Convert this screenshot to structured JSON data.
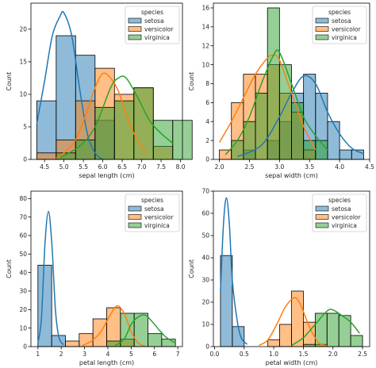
{
  "chart_data": [
    {
      "type": "histogram",
      "xlabel": "sepal length (cm)",
      "ylabel": "Count",
      "xlim": [
        4.15,
        8.05
      ],
      "ylim": [
        0,
        24
      ],
      "xticks": [
        4.5,
        5.0,
        5.5,
        6.0,
        6.5,
        7.0,
        7.5,
        8.0
      ],
      "xtick_labels": [
        "4.5",
        "5.0",
        "5.5",
        "6.0",
        "6.5",
        "7.0",
        "7.5",
        "8.0"
      ],
      "yticks": [
        0,
        5,
        10,
        15,
        20
      ],
      "yticks_labels": [
        "0",
        "5",
        "10",
        "15",
        "20"
      ],
      "legend": {
        "title": "species",
        "position": "top-right",
        "labels": [
          "setosa",
          "versicolor",
          "virginica"
        ]
      },
      "bins": [
        4.3,
        4.8,
        5.3,
        5.8,
        6.3,
        6.8,
        7.3,
        7.8,
        8.3
      ],
      "series": [
        {
          "name": "setosa",
          "color": "#1f77b4",
          "counts": [
            9,
            19,
            16,
            6,
            0,
            0,
            0,
            0
          ],
          "kde": [
            [
              4.3,
              5.5
            ],
            [
              4.5,
              12
            ],
            [
              4.7,
              19
            ],
            [
              4.9,
              22
            ],
            [
              5.0,
              22.5
            ],
            [
              5.2,
              19
            ],
            [
              5.4,
              11
            ],
            [
              5.6,
              4
            ],
            [
              5.8,
              1
            ],
            [
              6.0,
              0
            ]
          ]
        },
        {
          "name": "versicolor",
          "color": "#ff7f0e",
          "counts": [
            1,
            3,
            9,
            14,
            10,
            11,
            2,
            0
          ],
          "kde": [
            [
              4.8,
              0.2
            ],
            [
              5.0,
              1
            ],
            [
              5.3,
              3
            ],
            [
              5.6,
              7.5
            ],
            [
              5.8,
              11
            ],
            [
              6.0,
              13.2
            ],
            [
              6.2,
              12.5
            ],
            [
              6.4,
              10.5
            ],
            [
              6.6,
              7
            ],
            [
              6.8,
              4
            ],
            [
              7.1,
              1
            ]
          ]
        },
        {
          "name": "virginica",
          "color": "#2ca02c",
          "counts": [
            0,
            1,
            3,
            8,
            9,
            11,
            6,
            6
          ],
          "kde": [
            [
              4.9,
              0.3
            ],
            [
              5.4,
              2
            ],
            [
              5.8,
              5
            ],
            [
              6.2,
              11
            ],
            [
              6.4,
              12.5
            ],
            [
              6.6,
              12.5
            ],
            [
              6.9,
              9.5
            ],
            [
              7.2,
              6
            ],
            [
              7.5,
              4
            ],
            [
              7.8,
              2.5
            ]
          ]
        }
      ]
    },
    {
      "type": "histogram",
      "xlabel": "sepal width (cm)",
      "ylabel": "Count",
      "xlim": [
        1.9,
        4.5
      ],
      "ylim": [
        0,
        16.5
      ],
      "xticks": [
        2.0,
        2.5,
        3.0,
        3.5,
        4.0,
        4.5
      ],
      "xtick_labels": [
        "2.0",
        "2.5",
        "3.0",
        "3.5",
        "4.0",
        "4.5"
      ],
      "yticks": [
        0,
        2,
        4,
        6,
        8,
        10,
        12,
        14,
        16
      ],
      "yticks_labels": [
        "0",
        "2",
        "4",
        "6",
        "8",
        "10",
        "12",
        "14",
        "16"
      ],
      "legend": {
        "title": "species",
        "position": "top-right",
        "labels": [
          "setosa",
          "versicolor",
          "virginica"
        ]
      },
      "bins": [
        2.0,
        2.2,
        2.4,
        2.6,
        2.8,
        3.0,
        3.2,
        3.4,
        3.6,
        3.8,
        4.0,
        4.2,
        4.4
      ],
      "series": [
        {
          "name": "setosa",
          "color": "#1f77b4",
          "counts": [
            0,
            0,
            1,
            0,
            2,
            4,
            7,
            9,
            7,
            4,
            1,
            1
          ],
          "kde": [
            [
              2.3,
              0.3
            ],
            [
              2.7,
              1.5
            ],
            [
              3.0,
              4.5
            ],
            [
              3.2,
              7
            ],
            [
              3.4,
              8.8
            ],
            [
              3.6,
              8
            ],
            [
              3.8,
              5
            ],
            [
              4.0,
              2.7
            ],
            [
              4.2,
              1.2
            ],
            [
              4.4,
              0.6
            ]
          ]
        },
        {
          "name": "versicolor",
          "color": "#ff7f0e",
          "counts": [
            1,
            6,
            9,
            9,
            10,
            7,
            5,
            1,
            0,
            0,
            0,
            0
          ],
          "kde": [
            [
              2.0,
              1.8
            ],
            [
              2.2,
              4
            ],
            [
              2.4,
              6.5
            ],
            [
              2.6,
              9
            ],
            [
              2.8,
              10.7
            ],
            [
              2.9,
              11
            ],
            [
              3.0,
              10.5
            ],
            [
              3.2,
              7
            ],
            [
              3.4,
              3.5
            ],
            [
              3.6,
              1
            ]
          ]
        },
        {
          "name": "virginica",
          "color": "#2ca02c",
          "counts": [
            0,
            2,
            4,
            7,
            16,
            10,
            6,
            2,
            2,
            0,
            0,
            0
          ],
          "kde": [
            [
              2.1,
              0.5
            ],
            [
              2.3,
              2
            ],
            [
              2.5,
              4.5
            ],
            [
              2.7,
              8
            ],
            [
              2.9,
              11
            ],
            [
              3.0,
              11.3
            ],
            [
              3.2,
              8
            ],
            [
              3.4,
              4.5
            ],
            [
              3.6,
              2.5
            ],
            [
              3.8,
              1
            ]
          ]
        }
      ]
    },
    {
      "type": "histogram",
      "xlabel": "petal length (cm)",
      "ylabel": "Count",
      "xlim": [
        0.7,
        7.2
      ],
      "ylim": [
        0,
        84
      ],
      "xticks": [
        1,
        2,
        3,
        4,
        5,
        6,
        7
      ],
      "xtick_labels": [
        "1",
        "2",
        "3",
        "4",
        "5",
        "6",
        "7"
      ],
      "yticks": [
        0,
        10,
        20,
        30,
        40,
        50,
        60,
        70,
        80
      ],
      "yticks_labels": [
        "0",
        "10",
        "20",
        "30",
        "40",
        "50",
        "60",
        "70",
        "80"
      ],
      "legend": {
        "title": "species",
        "position": "top-right",
        "labels": [
          "setosa",
          "versicolor",
          "virginica"
        ]
      },
      "bins": [
        1.0,
        1.59,
        2.18,
        2.77,
        3.36,
        3.95,
        4.54,
        5.13,
        5.72,
        6.31,
        6.9
      ],
      "series": [
        {
          "name": "setosa",
          "color": "#1f77b4",
          "counts": [
            44,
            6,
            0,
            0,
            0,
            0,
            0,
            0,
            0,
            0
          ],
          "kde": [
            [
              1.0,
              2
            ],
            [
              1.15,
              15
            ],
            [
              1.3,
              55
            ],
            [
              1.45,
              73
            ],
            [
              1.6,
              55
            ],
            [
              1.75,
              20
            ],
            [
              1.9,
              5
            ],
            [
              2.1,
              1
            ]
          ]
        },
        {
          "name": "versicolor",
          "color": "#ff7f0e",
          "counts": [
            0,
            0,
            3,
            7,
            15,
            21,
            4,
            0,
            0,
            0
          ],
          "kde": [
            [
              2.9,
              0.5
            ],
            [
              3.3,
              3
            ],
            [
              3.7,
              8
            ],
            [
              4.1,
              17
            ],
            [
              4.4,
              22
            ],
            [
              4.7,
              18
            ],
            [
              5.0,
              8
            ],
            [
              5.3,
              2
            ],
            [
              5.6,
              0.3
            ]
          ]
        },
        {
          "name": "virginica",
          "color": "#2ca02c",
          "counts": [
            0,
            0,
            0,
            0,
            0,
            3,
            18,
            18,
            7,
            4
          ],
          "kde": [
            [
              4.3,
              0.5
            ],
            [
              4.7,
              4
            ],
            [
              5.0,
              12
            ],
            [
              5.3,
              16
            ],
            [
              5.6,
              17
            ],
            [
              5.9,
              13.5
            ],
            [
              6.2,
              9
            ],
            [
              6.5,
              5
            ],
            [
              6.9,
              2
            ]
          ]
        }
      ]
    },
    {
      "type": "histogram",
      "xlabel": "petal width (cm)",
      "ylabel": "Count",
      "xlim": [
        -0.02,
        2.62
      ],
      "ylim": [
        0,
        70
      ],
      "xticks": [
        0.0,
        0.5,
        1.0,
        1.5,
        2.0,
        2.5
      ],
      "xtick_labels": [
        "0.0",
        "0.5",
        "1.0",
        "1.5",
        "2.0",
        "2.5"
      ],
      "yticks": [
        0,
        10,
        20,
        30,
        40,
        50,
        60,
        70
      ],
      "yticks_labels": [
        "0",
        "10",
        "20",
        "30",
        "40",
        "50",
        "60",
        "70"
      ],
      "legend": {
        "title": "species",
        "position": "top-right",
        "labels": [
          "setosa",
          "versicolor",
          "virginica"
        ]
      },
      "bins": [
        0.1,
        0.3,
        0.5,
        0.7,
        0.9,
        1.1,
        1.3,
        1.5,
        1.7,
        1.9,
        2.1,
        2.3,
        2.5
      ],
      "series": [
        {
          "name": "setosa",
          "color": "#1f77b4",
          "counts": [
            41,
            9,
            0,
            0,
            0,
            0,
            0,
            0,
            0,
            0,
            0,
            0
          ],
          "kde": [
            [
              0.1,
              25
            ],
            [
              0.15,
              55
            ],
            [
              0.2,
              67
            ],
            [
              0.25,
              55
            ],
            [
              0.3,
              30
            ],
            [
              0.38,
              12
            ],
            [
              0.45,
              4
            ],
            [
              0.55,
              1
            ]
          ]
        },
        {
          "name": "versicolor",
          "color": "#ff7f0e",
          "counts": [
            0,
            0,
            0,
            0,
            3,
            10,
            25,
            11,
            1,
            0,
            0,
            0
          ],
          "kde": [
            [
              0.75,
              0.5
            ],
            [
              0.9,
              3
            ],
            [
              1.05,
              10
            ],
            [
              1.2,
              18
            ],
            [
              1.35,
              22
            ],
            [
              1.45,
              19
            ],
            [
              1.6,
              9
            ],
            [
              1.75,
              2
            ],
            [
              1.9,
              0.3
            ]
          ]
        },
        {
          "name": "virginica",
          "color": "#2ca02c",
          "counts": [
            0,
            0,
            0,
            0,
            0,
            0,
            0,
            1,
            15,
            15,
            14,
            5
          ],
          "kde": [
            [
              1.3,
              0.5
            ],
            [
              1.5,
              4
            ],
            [
              1.7,
              10
            ],
            [
              1.9,
              16
            ],
            [
              2.0,
              16.5
            ],
            [
              2.15,
              14
            ],
            [
              2.3,
              11
            ],
            [
              2.45,
              6
            ]
          ]
        }
      ]
    }
  ]
}
